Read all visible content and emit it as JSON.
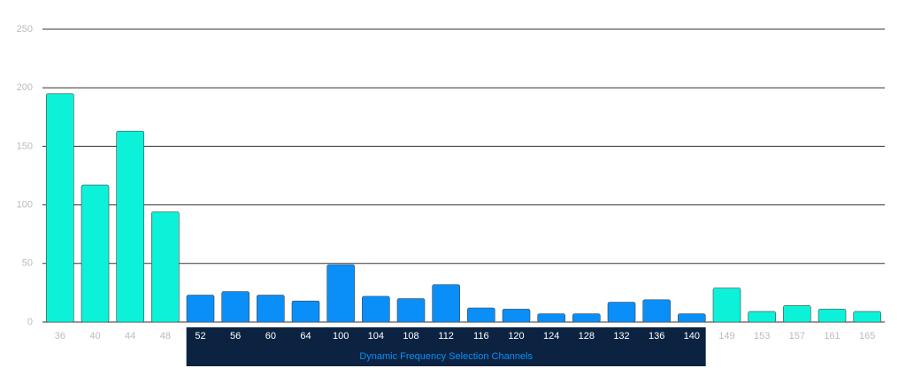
{
  "chart_data": {
    "type": "bar",
    "categories": [
      "36",
      "40",
      "44",
      "48",
      "52",
      "56",
      "60",
      "64",
      "100",
      "104",
      "108",
      "112",
      "116",
      "120",
      "124",
      "128",
      "132",
      "136",
      "140",
      "149",
      "153",
      "157",
      "161",
      "165"
    ],
    "values": [
      195,
      117,
      163,
      94,
      23,
      26,
      23,
      18,
      49,
      22,
      20,
      32,
      12,
      11,
      7,
      7,
      17,
      19,
      7,
      29,
      9,
      14,
      11,
      9
    ],
    "colors": [
      "#0cf2d9",
      "#0cf2d9",
      "#0cf2d9",
      "#0cf2d9",
      "#0a8ff8",
      "#0a8ff8",
      "#0a8ff8",
      "#0a8ff8",
      "#0a8ff8",
      "#0a8ff8",
      "#0a8ff8",
      "#0a8ff8",
      "#0a8ff8",
      "#0a8ff8",
      "#0a8ff8",
      "#0a8ff8",
      "#0a8ff8",
      "#0a8ff8",
      "#0a8ff8",
      "#0cf2d9",
      "#0cf2d9",
      "#0cf2d9",
      "#0cf2d9",
      "#0cf2d9"
    ],
    "ylim": [
      0,
      250
    ],
    "yticks": [
      0,
      50,
      100,
      150,
      200,
      250
    ],
    "grid": true,
    "annotation": {
      "text": "Dynamic Frequency Selection Channels",
      "color": "#0a8ff8"
    }
  }
}
